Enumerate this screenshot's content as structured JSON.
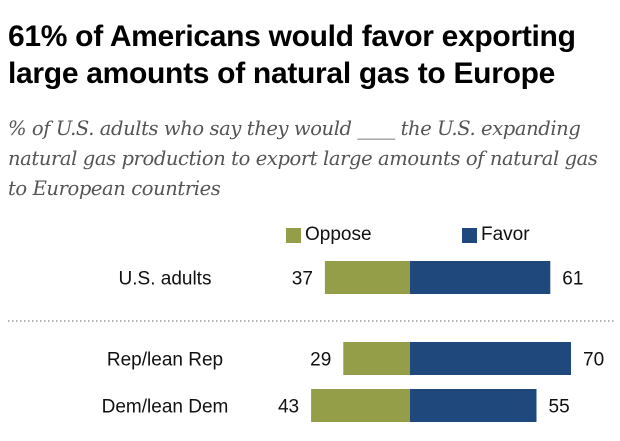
{
  "title": "61% of Americans would favor exporting large amounts of natural gas to Europe",
  "subtitle": "% of U.S. adults who say they would ____ the U.S. expanding natural gas production to export large amounts of natural gas to European countries",
  "colors": {
    "oppose": "#949d48",
    "favor": "#1f497d",
    "divider": "#999999"
  },
  "chart_data": {
    "type": "bar",
    "orientation": "horizontal-diverging",
    "title": "61% of Americans would favor exporting large amounts of natural gas to Europe",
    "categories": [
      "U.S. adults",
      "Rep/lean Rep",
      "Dem/lean Dem"
    ],
    "series": [
      {
        "name": "Oppose",
        "values": [
          37,
          29,
          43
        ]
      },
      {
        "name": "Favor",
        "values": [
          61,
          70,
          55
        ]
      }
    ],
    "legend": "top",
    "grid": false
  }
}
